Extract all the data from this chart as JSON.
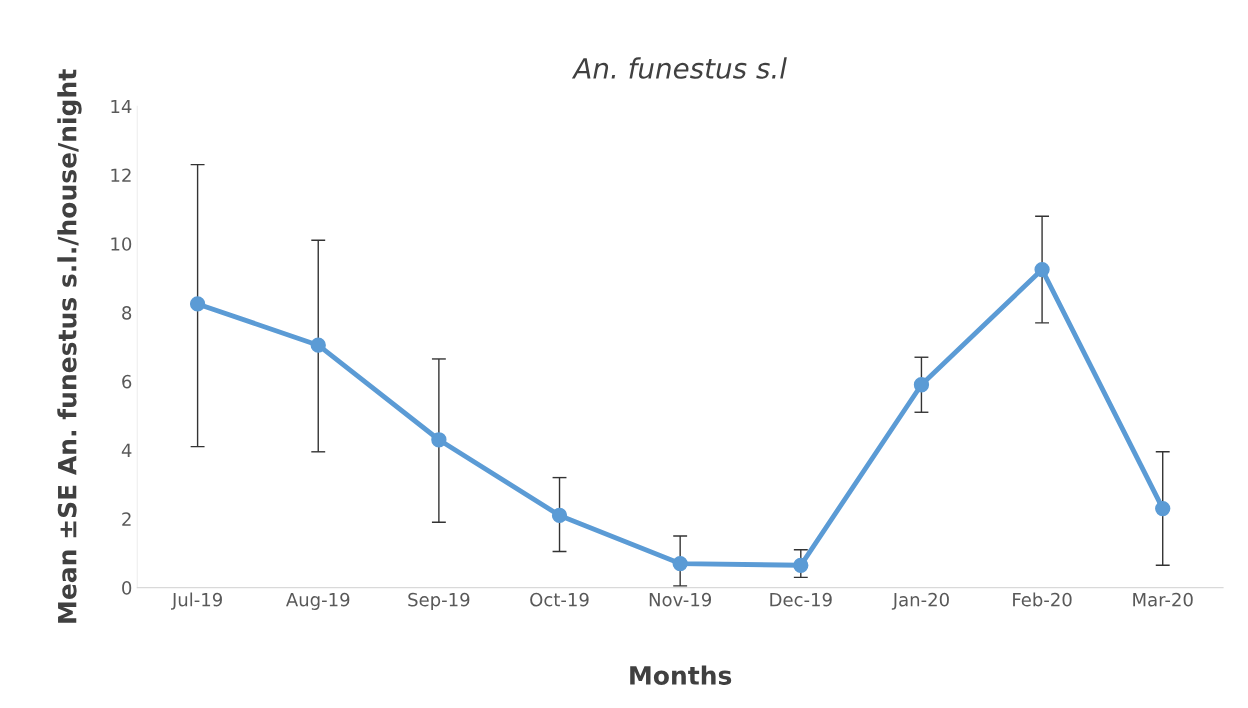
{
  "chart_data": {
    "type": "line",
    "title": "An. funestus s.l",
    "xlabel": "Months",
    "ylabel": "Mean ±SE An. funestus s.l./house/night",
    "categories": [
      "Jul-19",
      "Aug-19",
      "Sep-19",
      "Oct-19",
      "Nov-19",
      "Dec-19",
      "Jan-20",
      "Feb-20",
      "Mar-20"
    ],
    "series": [
      {
        "color": "#5b9bd5",
        "values": [
          8.25,
          7.05,
          4.3,
          2.1,
          0.7,
          0.65,
          5.9,
          9.25,
          2.3
        ],
        "errors": [
          [
            4.1,
            12.3
          ],
          [
            3.95,
            10.1
          ],
          [
            1.9,
            6.65
          ],
          [
            1.05,
            3.2
          ],
          [
            0.05,
            1.5
          ],
          [
            0.3,
            1.1
          ],
          [
            5.1,
            6.7
          ],
          [
            7.7,
            10.8
          ],
          [
            0.65,
            3.95
          ]
        ]
      }
    ],
    "ylim": [
      0,
      14
    ],
    "yticks": [
      0,
      2,
      4,
      6,
      8,
      10,
      12,
      14
    ],
    "grid": false,
    "marker": "circle",
    "line_style": "solid",
    "legend": false
  }
}
